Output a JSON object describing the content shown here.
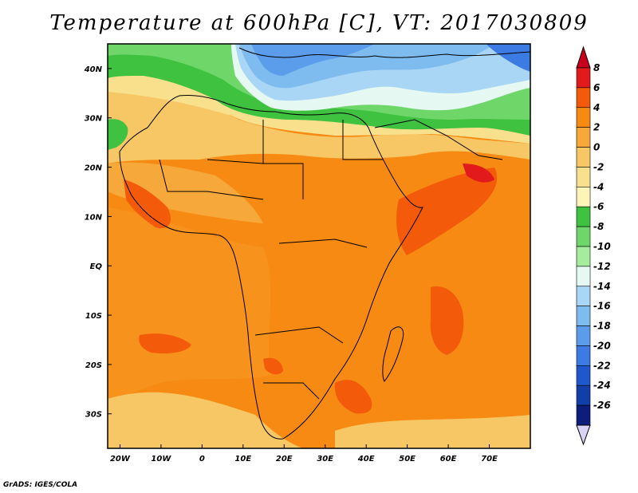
{
  "title": "Temperature at 600hPa [C], VT: 2017030809",
  "credit": "GrADS: IGES/COLA",
  "map": {
    "lon_range": [
      -23,
      80
    ],
    "lat_range": [
      -37,
      45
    ],
    "lon_ticks": [
      "20W",
      "10W",
      "0",
      "10E",
      "20E",
      "30E",
      "40E",
      "50E",
      "60E",
      "70E"
    ],
    "lat_ticks": [
      "40N",
      "30N",
      "20N",
      "10N",
      "EQ",
      "10S",
      "20S",
      "30S"
    ]
  },
  "colorbar": {
    "labels": [
      "8",
      "6",
      "4",
      "2",
      "0",
      "-2",
      "-4",
      "-6",
      "-8",
      "-10",
      "-12",
      "-14",
      "-16",
      "-18",
      "-20",
      "-22",
      "-24",
      "-26"
    ],
    "colors": [
      "#e31a1c",
      "#f35b0b",
      "#f78a12",
      "#f7a83a",
      "#f7c765",
      "#f9e08c",
      "#fdf5b8",
      "#3ec240",
      "#6fd66a",
      "#a5ec9e",
      "#e5f8f2",
      "#a9d6f5",
      "#7ebcf0",
      "#5b9ceb",
      "#3c7be3",
      "#1e58cc",
      "#123ea8",
      "#0c1d7a"
    ],
    "over_color": "#c8001e",
    "under_color": "#d9d4f5"
  }
}
